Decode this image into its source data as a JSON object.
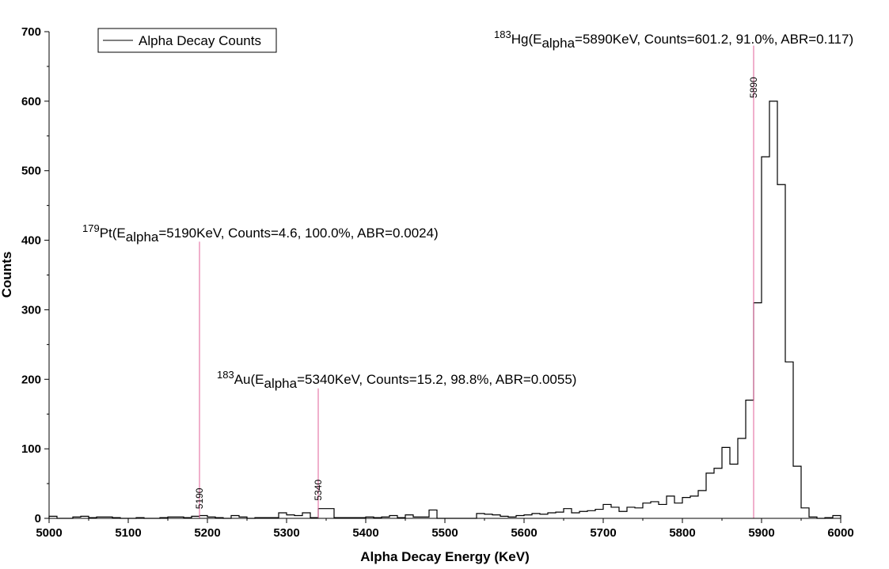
{
  "chart_data": {
    "type": "histogram",
    "xlabel": "Alpha Decay Energy (KeV)",
    "ylabel": "Counts",
    "xlim": [
      5000,
      6000
    ],
    "ylim": [
      0,
      700
    ],
    "xticks": [
      5000,
      5100,
      5200,
      5300,
      5400,
      5500,
      5600,
      5700,
      5800,
      5900,
      6000
    ],
    "yticks": [
      0,
      100,
      200,
      300,
      400,
      500,
      600,
      700
    ],
    "grid": false,
    "legend": {
      "position": "top-left",
      "entries": [
        "Alpha Decay Counts"
      ]
    },
    "line_color": "#000000",
    "marker_color": "#e0609a",
    "series": [
      {
        "name": "Alpha Decay Counts",
        "bin_width": 10,
        "bin_starts": [
          5000,
          5010,
          5020,
          5030,
          5040,
          5050,
          5060,
          5070,
          5080,
          5090,
          5100,
          5110,
          5120,
          5130,
          5140,
          5150,
          5160,
          5170,
          5180,
          5190,
          5200,
          5210,
          5220,
          5230,
          5240,
          5250,
          5260,
          5270,
          5280,
          5290,
          5300,
          5310,
          5320,
          5330,
          5340,
          5350,
          5360,
          5370,
          5380,
          5390,
          5400,
          5410,
          5420,
          5430,
          5440,
          5450,
          5460,
          5470,
          5480,
          5490,
          5500,
          5510,
          5520,
          5530,
          5540,
          5550,
          5560,
          5570,
          5580,
          5590,
          5600,
          5610,
          5620,
          5630,
          5640,
          5650,
          5660,
          5670,
          5680,
          5690,
          5700,
          5710,
          5720,
          5730,
          5740,
          5750,
          5760,
          5770,
          5780,
          5790,
          5800,
          5810,
          5820,
          5830,
          5840,
          5850,
          5860,
          5870,
          5880,
          5890,
          5900,
          5910,
          5920,
          5930,
          5940,
          5950,
          5960,
          5970,
          5980,
          5990
        ],
        "values": [
          3,
          0,
          0,
          2,
          3,
          1,
          2,
          2,
          1,
          0,
          0,
          1,
          0,
          0,
          1,
          2,
          2,
          1,
          3,
          4,
          2,
          1,
          0,
          4,
          2,
          0,
          1,
          1,
          1,
          8,
          5,
          4,
          8,
          1,
          14,
          14,
          1,
          1,
          1,
          1,
          2,
          1,
          2,
          4,
          1,
          5,
          2,
          2,
          12,
          0,
          0,
          0,
          0,
          0,
          7,
          6,
          5,
          3,
          2,
          4,
          5,
          7,
          6,
          8,
          9,
          14,
          8,
          10,
          11,
          13,
          20,
          16,
          10,
          16,
          15,
          22,
          24,
          20,
          32,
          22,
          30,
          32,
          40,
          65,
          72,
          102,
          78,
          115,
          170,
          310,
          520,
          600,
          480,
          225,
          75,
          15,
          2,
          0,
          1,
          4
        ]
      }
    ],
    "annotations": [
      {
        "isotope_mass": "179",
        "isotope_symbol": "Pt",
        "prefix": "(E",
        "sub": "alpha",
        "suffix": "=5190KeV, Counts=4.6, 100.0%, ABR=0.0024)",
        "marker_x": 5190,
        "marker_top_y": 398,
        "marker_label": "5190"
      },
      {
        "isotope_mass": "183",
        "isotope_symbol": "Au",
        "prefix": "(E",
        "sub": "alpha",
        "suffix": "=5340KeV, Counts=15.2, 98.8%, ABR=0.0055)",
        "marker_x": 5340,
        "marker_top_y": 187,
        "marker_label": "5340"
      },
      {
        "isotope_mass": "183",
        "isotope_symbol": "Hg",
        "prefix": "(E",
        "sub": "alpha",
        "suffix": "=5890KeV, Counts=601.2, 91.0%, ABR=0.117)",
        "marker_x": 5890,
        "marker_top_y": 680,
        "marker_label": "5890"
      }
    ]
  }
}
